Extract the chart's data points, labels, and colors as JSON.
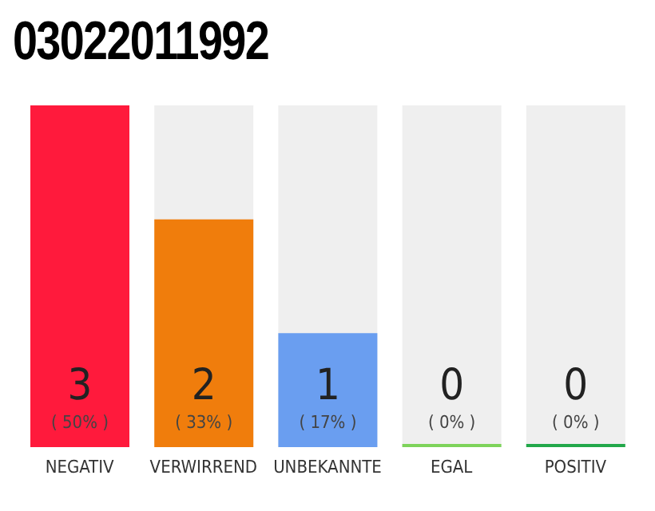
{
  "chart_data": {
    "type": "bar",
    "title": "03022011992",
    "categories": [
      "NEGATIV",
      "VERWIRREND",
      "UNBEKANNTE",
      "EGAL",
      "POSITIV"
    ],
    "values": [
      3,
      2,
      1,
      0,
      0
    ],
    "colors": [
      "#ff1a3c",
      "#f07d0c",
      "#6a9ef0",
      "#7dd35a",
      "#22a84a"
    ],
    "value_labels": [
      "3\n( 50% )",
      "2\n( 33% )",
      "1\n( 17% )",
      "0\n( 0% )",
      "0\n( 0% )"
    ]
  }
}
